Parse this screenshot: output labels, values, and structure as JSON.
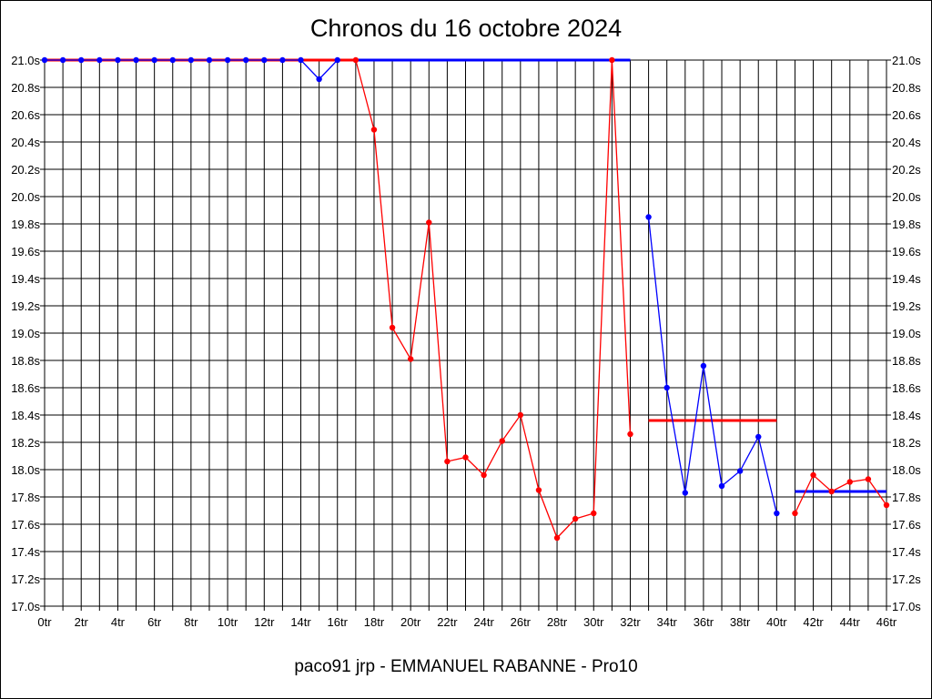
{
  "chart_data": {
    "type": "line",
    "title": "Chronos du 16 octobre 2024",
    "footer": "paco91 jrp - EMMANUEL RABANNE - Pro10",
    "xlim": [
      0,
      46
    ],
    "ylim": [
      17.0,
      21.0
    ],
    "grid": true,
    "x_ticks": [
      "0tr",
      "2tr",
      "4tr",
      "6tr",
      "8tr",
      "10tr",
      "12tr",
      "14tr",
      "16tr",
      "18tr",
      "20tr",
      "22tr",
      "24tr",
      "26tr",
      "28tr",
      "30tr",
      "32tr",
      "34tr",
      "36tr",
      "38tr",
      "40tr",
      "42tr",
      "44tr",
      "46tr"
    ],
    "y_ticks": [
      "17.0s",
      "17.2s",
      "17.4s",
      "17.6s",
      "17.8s",
      "18.0s",
      "18.2s",
      "18.4s",
      "18.6s",
      "18.8s",
      "19.0s",
      "19.2s",
      "19.4s",
      "19.6s",
      "19.8s",
      "20.0s",
      "20.2s",
      "20.4s",
      "20.6s",
      "20.8s",
      "21.0s"
    ],
    "series": [
      {
        "color": "#0000ff",
        "x": [
          0,
          1,
          2,
          3,
          4,
          5,
          6,
          7,
          8,
          9,
          10,
          11,
          12,
          13,
          14,
          15,
          16
        ],
        "y": [
          21.0,
          21.0,
          21.0,
          21.0,
          21.0,
          21.0,
          21.0,
          21.0,
          21.0,
          21.0,
          21.0,
          21.0,
          21.0,
          21.0,
          21.0,
          20.86,
          21.0
        ]
      },
      {
        "color": "#ff0000",
        "x": [
          17,
          18,
          19,
          20,
          21,
          22,
          23,
          24,
          25,
          26,
          27,
          28,
          29,
          30,
          31,
          32
        ],
        "y": [
          21.0,
          20.49,
          19.04,
          18.81,
          19.81,
          18.06,
          18.09,
          17.96,
          18.21,
          18.4,
          17.85,
          17.5,
          17.64,
          17.68,
          21.0,
          18.26
        ]
      },
      {
        "color": "#0000ff",
        "x": [
          33,
          34,
          35,
          36,
          37,
          38,
          39,
          40
        ],
        "y": [
          19.85,
          18.6,
          17.83,
          18.76,
          17.88,
          17.99,
          18.24,
          17.68
        ]
      },
      {
        "color": "#ff0000",
        "x": [
          41,
          42,
          43,
          44,
          45,
          46
        ],
        "y": [
          17.68,
          17.96,
          17.84,
          17.91,
          17.93,
          17.74
        ]
      }
    ],
    "reference_lines": [
      {
        "color": "#ff0000",
        "x": [
          0,
          17
        ],
        "y": 21.0
      },
      {
        "color": "#0000ff",
        "x": [
          17,
          32
        ],
        "y": 21.0
      },
      {
        "color": "#ff0000",
        "x": [
          33,
          40
        ],
        "y": 18.36
      },
      {
        "color": "#0000ff",
        "x": [
          41,
          46
        ],
        "y": 17.84
      }
    ]
  }
}
